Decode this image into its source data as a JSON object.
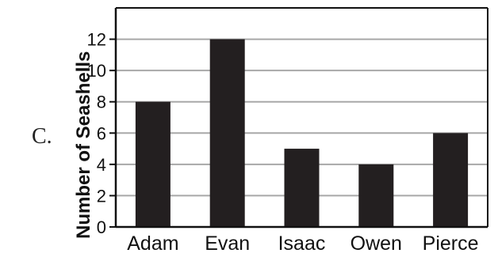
{
  "option_letter": "C.",
  "chart_data": {
    "type": "bar",
    "categories": [
      "Adam",
      "Evan",
      "Isaac",
      "Owen",
      "Pierce"
    ],
    "values": [
      8,
      12,
      5,
      4,
      6
    ],
    "title": "",
    "xlabel": "",
    "ylabel": "Number of Seashells",
    "ylim": [
      0,
      14
    ],
    "yticks": [
      0,
      2,
      4,
      6,
      8,
      10,
      12
    ],
    "grid": true,
    "bar_color": "#231f20",
    "grid_color": "#a8a8a8",
    "axis_color": "#111111"
  }
}
